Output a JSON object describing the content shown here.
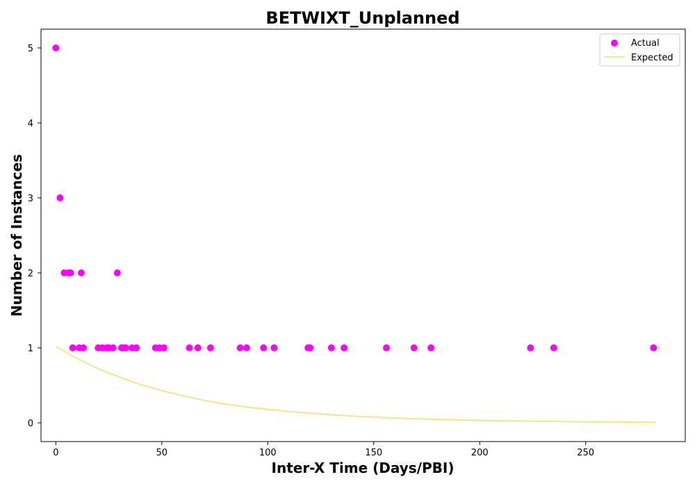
{
  "chart_data": {
    "type": "scatter",
    "title": "BETWIXT_Unplanned",
    "xlabel": "Inter-X Time (Days/PBI)",
    "ylabel": "Number of Instances",
    "xlim": [
      -7,
      297
    ],
    "ylim": [
      -0.25,
      5.25
    ],
    "xticks": [
      0,
      50,
      100,
      150,
      200,
      250
    ],
    "yticks": [
      0,
      1,
      2,
      3,
      4,
      5
    ],
    "grid": false,
    "legend_position": "top-right",
    "legend": [
      "Actual",
      "Expected"
    ],
    "series": [
      {
        "name": "Actual",
        "kind": "scatter",
        "color": "#ff00ff",
        "points": [
          [
            0,
            5
          ],
          [
            2,
            3
          ],
          [
            4,
            2
          ],
          [
            6,
            2
          ],
          [
            7,
            2
          ],
          [
            12,
            2
          ],
          [
            29,
            2
          ],
          [
            8,
            1
          ],
          [
            11,
            1
          ],
          [
            13,
            1
          ],
          [
            20,
            1
          ],
          [
            22,
            1
          ],
          [
            24,
            1
          ],
          [
            25,
            1
          ],
          [
            27,
            1
          ],
          [
            31,
            1
          ],
          [
            32,
            1
          ],
          [
            33,
            1
          ],
          [
            36,
            1
          ],
          [
            38,
            1
          ],
          [
            47,
            1
          ],
          [
            49,
            1
          ],
          [
            51,
            1
          ],
          [
            63,
            1
          ],
          [
            67,
            1
          ],
          [
            73,
            1
          ],
          [
            87,
            1
          ],
          [
            90,
            1
          ],
          [
            98,
            1
          ],
          [
            103,
            1
          ],
          [
            119,
            1
          ],
          [
            120,
            1
          ],
          [
            130,
            1
          ],
          [
            136,
            1
          ],
          [
            156,
            1
          ],
          [
            169,
            1
          ],
          [
            177,
            1
          ],
          [
            224,
            1
          ],
          [
            235,
            1
          ],
          [
            282,
            1
          ]
        ]
      },
      {
        "name": "Expected",
        "kind": "line",
        "color": "#f0e68c",
        "x": [
          0,
          10,
          20,
          30,
          40,
          50,
          60,
          70,
          80,
          90,
          100,
          110,
          120,
          130,
          140,
          150,
          160,
          170,
          180,
          190,
          200,
          210,
          220,
          230,
          240,
          250,
          260,
          270,
          283
        ],
        "y": [
          1.02,
          0.86,
          0.72,
          0.61,
          0.51,
          0.43,
          0.36,
          0.3,
          0.25,
          0.21,
          0.18,
          0.15,
          0.127,
          0.107,
          0.09,
          0.076,
          0.064,
          0.054,
          0.045,
          0.038,
          0.032,
          0.027,
          0.022,
          0.019,
          0.016,
          0.013,
          0.011,
          0.009,
          0.007
        ]
      }
    ]
  }
}
